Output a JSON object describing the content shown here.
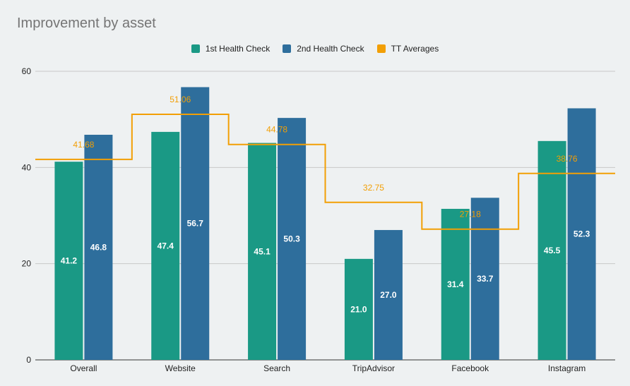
{
  "chart_data": {
    "type": "bar",
    "title": "Improvement by asset",
    "categories": [
      "Overall",
      "Website",
      "Search",
      "TripAdvisor",
      "Facebook",
      "Instagram"
    ],
    "series": [
      {
        "name": "1st Health Check",
        "values": [
          41.2,
          47.4,
          45.1,
          21.0,
          31.4,
          45.5
        ],
        "color": "#1a9985"
      },
      {
        "name": "2nd Health Check",
        "values": [
          46.8,
          56.7,
          50.3,
          27.0,
          33.7,
          52.3
        ],
        "color": "#2e6e9c"
      }
    ],
    "line_series": {
      "name": "TT Averages",
      "values": [
        41.68,
        51.06,
        44.78,
        32.75,
        27.18,
        38.76
      ],
      "color": "#f29f05",
      "style": "stepped"
    },
    "bar_value_labels": [
      [
        "41.2",
        "47.4",
        "45.1",
        "21.0",
        "31.4",
        "45.5"
      ],
      [
        "46.8",
        "56.7",
        "50.3",
        "27.0",
        "33.7",
        "52.3"
      ]
    ],
    "line_value_labels": [
      "41.68",
      "51.06",
      "44.78",
      "32.75",
      "27.18",
      "38.76"
    ],
    "y_ticks": [
      0,
      20,
      40,
      60
    ],
    "ylim": [
      0,
      60
    ],
    "xlabel": "",
    "ylabel": "",
    "grid": true,
    "legend_position": "top"
  }
}
